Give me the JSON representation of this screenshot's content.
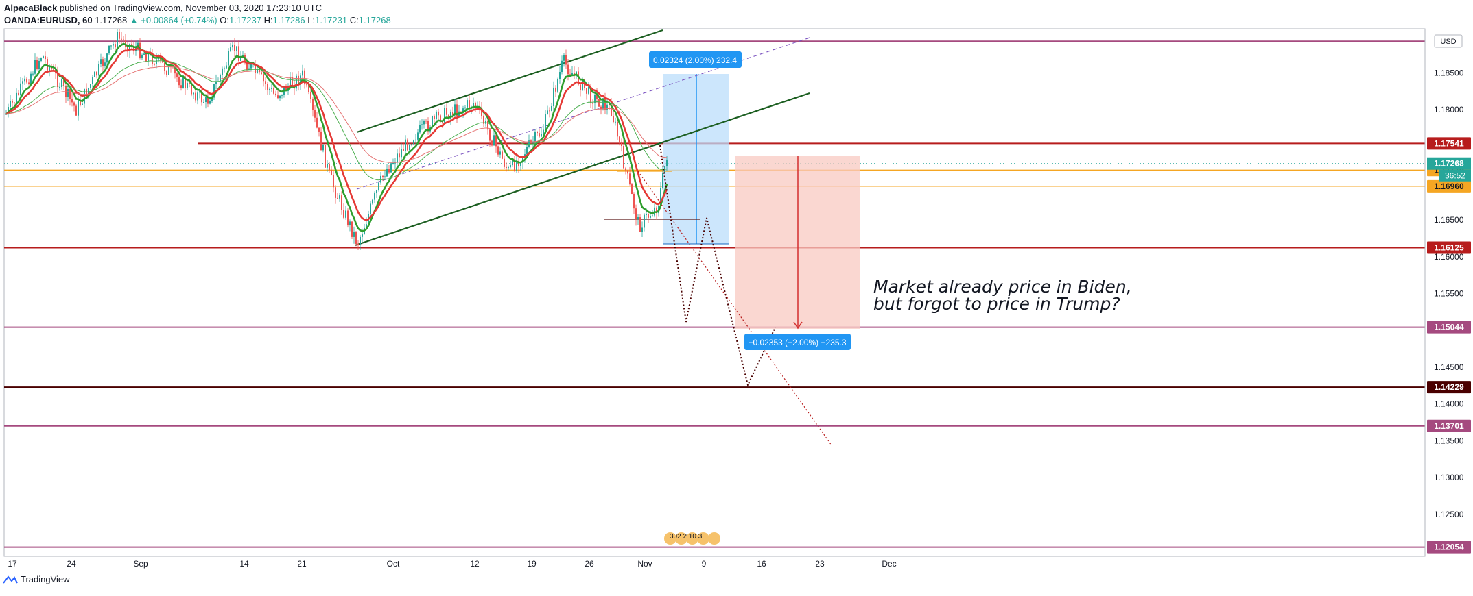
{
  "header": {
    "author": "AlpacaBlack",
    "published_text": "published on TradingView.com, November 03, 2020 17:23:10 UTC",
    "symbol": "OANDA:EURUSD, 60",
    "last": "1.17268",
    "change": "+0.00864 (+0.74%)",
    "o_label": "O:",
    "o": "1.17237",
    "h_label": "H:",
    "h": "1.17286",
    "l_label": "L:",
    "l": "1.17231",
    "c_label": "C:",
    "c": "1.17268"
  },
  "footer": {
    "brand": "TradingView"
  },
  "colors": {
    "up": "#26a69a",
    "down": "#ef5350",
    "ema_fast": "#2e9e2e",
    "ema_slow": "#e53935",
    "level_red": "#b71c1c",
    "level_purple": "#a54a7f",
    "level_orange": "#f5a623",
    "channel": "#1b5e20",
    "long_box": "#bbdefb",
    "short_box": "#f8c9c2",
    "measure_bg": "#2196f3"
  },
  "chart_data": {
    "type": "candlestick",
    "currency_badge": "USD",
    "x_ticks": [
      "17",
      "24",
      "Sep",
      "14",
      "21",
      "Oct",
      "12",
      "19",
      "26",
      "Nov",
      "9",
      "16",
      "23",
      "Dec"
    ],
    "y_ticks": [
      "1.18500",
      "1.18000",
      "1.16500",
      "1.16000",
      "1.15500",
      "1.14500",
      "1.14000",
      "1.13500",
      "1.13000",
      "1.12500"
    ],
    "ylim": [
      1.1193,
      1.191
    ],
    "horizontal_levels": [
      {
        "price": 1.1893,
        "label": "",
        "kind": "purple"
      },
      {
        "price": 1.17541,
        "label": "1.17541",
        "kind": "red"
      },
      {
        "price": 1.16125,
        "label": "1.16125",
        "kind": "red"
      },
      {
        "price": 1.15044,
        "label": "1.15044",
        "kind": "purple"
      },
      {
        "price": 1.14229,
        "label": "1.14229",
        "kind": "darkred"
      },
      {
        "price": 1.13701,
        "label": "1.13701",
        "kind": "purple"
      },
      {
        "price": 1.12054,
        "label": "1.12054",
        "kind": "purple"
      },
      {
        "price": 1.17179,
        "label": "1.17179",
        "kind": "orange"
      },
      {
        "price": 1.1696,
        "label": "1.16960",
        "kind": "orange"
      }
    ],
    "current_price": {
      "price": "1.17268",
      "countdown": "36:52"
    },
    "measure_up": "0.02324 (2.00%) 232.4",
    "measure_down": "−0.02353 (−2.00%) −235.3",
    "events_label": "302  2  10  3",
    "annotation": [
      "Market already price in Biden,",
      "but forgot to price in Trump?"
    ]
  }
}
